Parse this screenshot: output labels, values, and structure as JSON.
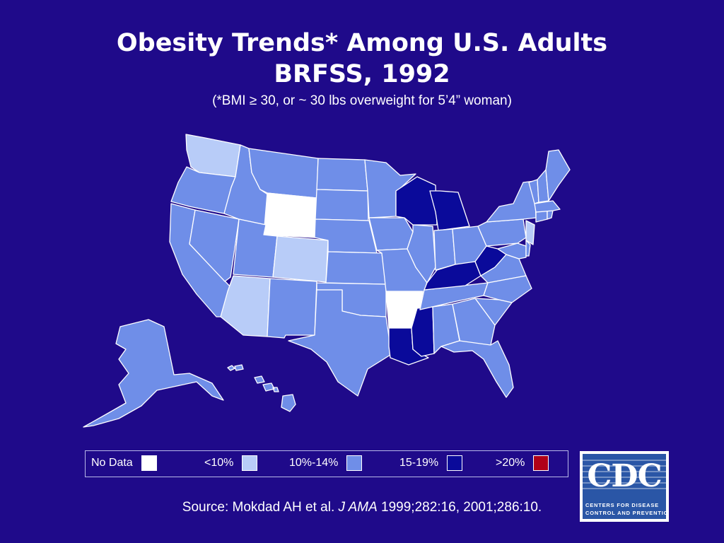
{
  "slide": {
    "title_line1": "Obesity Trends* Among U.S. Adults",
    "title_line2": "BRFSS, 1992",
    "subtitle": "(*BMI ≥ 30, or ~ 30 lbs overweight for 5’4” woman)",
    "background_color": "#1f0a8a"
  },
  "legend": [
    {
      "label": "No Data",
      "color": "#ffffff",
      "key": "nodata"
    },
    {
      "label": "<10%",
      "color": "#b8ccf8",
      "key": "lt10"
    },
    {
      "label": "10%-14%",
      "color": "#6f8ee8",
      "key": "10to14"
    },
    {
      "label": "15-19%",
      "color": "#0a0a9a",
      "key": "15to19"
    },
    {
      "label": ">20%",
      "color": "#b00018",
      "key": "gt20"
    }
  ],
  "states_by_category": {
    "nodata": [
      "WY",
      "AR"
    ],
    "lt10": [
      "WA",
      "CO",
      "AZ",
      "NJ"
    ],
    "15to19": [
      "WI",
      "MI",
      "KY",
      "WV",
      "LA",
      "MS"
    ],
    "10to14": [
      "OR",
      "CA",
      "NV",
      "ID",
      "MT",
      "UT",
      "NM",
      "TX",
      "ND",
      "SD",
      "NE",
      "KS",
      "OK",
      "MN",
      "IA",
      "MO",
      "IL",
      "IN",
      "OH",
      "PA",
      "NY",
      "VT",
      "NH",
      "ME",
      "MA",
      "CT",
      "RI",
      "DE",
      "MD",
      "VA",
      "NC",
      "SC",
      "GA",
      "FL",
      "AL",
      "TN",
      "AK",
      "HI"
    ]
  },
  "source": {
    "prefix": "Source: Mokdad AH et al. ",
    "journal": "J AMA",
    "suffix": " 1999;282:16, 2001;286:10."
  },
  "logo": {
    "wordmark": "CDC",
    "tagline1": "CENTERS FOR DISEASE",
    "tagline2": "CONTROL AND PREVENTION"
  }
}
